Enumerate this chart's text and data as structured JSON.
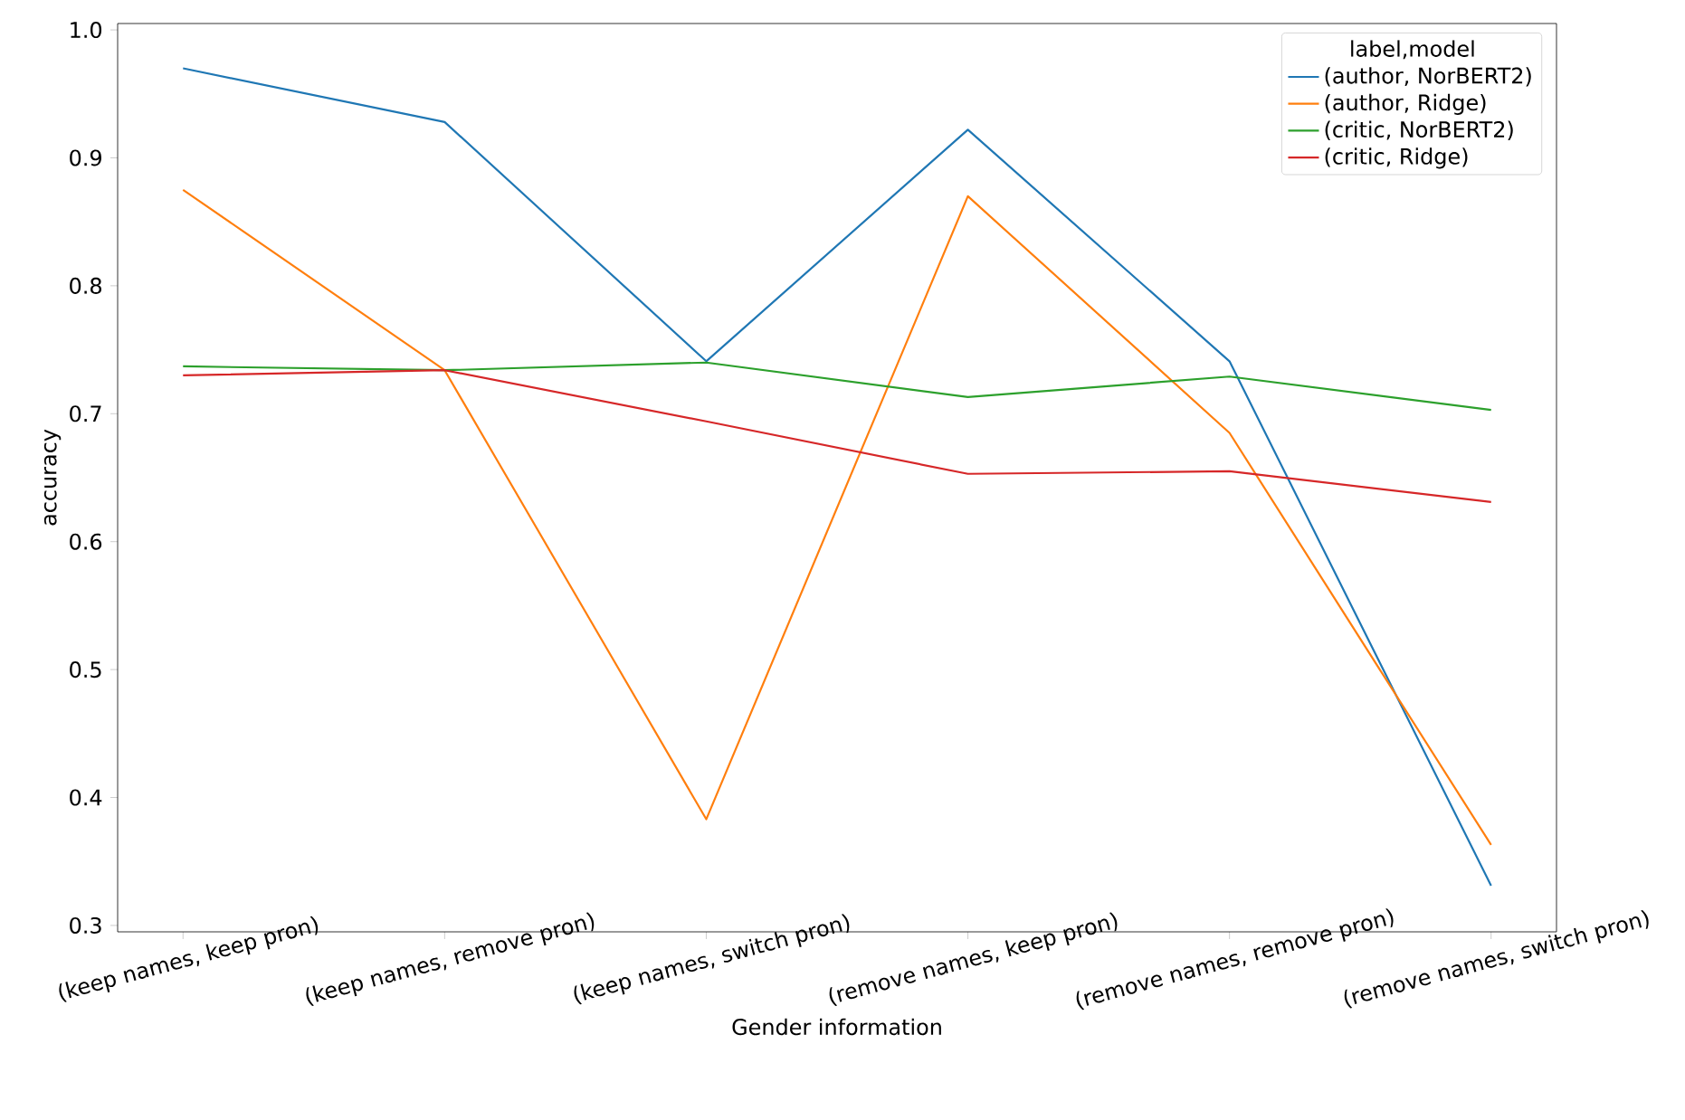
{
  "chart_data": {
    "type": "line",
    "xlabel": "Gender information",
    "ylabel": "accuracy",
    "legend_title": "label,model",
    "legend": "top right",
    "categories": [
      "(keep names, keep pron)",
      "(keep names, remove pron)",
      "(keep names, switch pron)",
      "(remove names, keep pron)",
      "(remove names, remove pron)",
      "(remove names, switch pron)"
    ],
    "series": [
      {
        "name": "(author, NorBERT2)",
        "color": "#1f77b4",
        "values": [
          0.97,
          0.928,
          0.741,
          0.922,
          0.741,
          0.331
        ]
      },
      {
        "name": "(author, Ridge)",
        "color": "#ff7f0e",
        "values": [
          0.875,
          0.734,
          0.383,
          0.87,
          0.685,
          0.363
        ]
      },
      {
        "name": "(critic, NorBERT2)",
        "color": "#2ca02c",
        "values": [
          0.737,
          0.734,
          0.74,
          0.713,
          0.729,
          0.703
        ]
      },
      {
        "name": "(critic, Ridge)",
        "color": "#d62728",
        "values": [
          0.73,
          0.734,
          0.694,
          0.653,
          0.655,
          0.631
        ]
      }
    ],
    "ylim": [
      0.295,
      1.005
    ],
    "yticks": [
      0.3,
      0.4,
      0.5,
      0.6,
      0.7,
      0.8,
      0.9,
      {
        "value": 1.0,
        "label": "1.0"
      }
    ],
    "grid": false
  }
}
